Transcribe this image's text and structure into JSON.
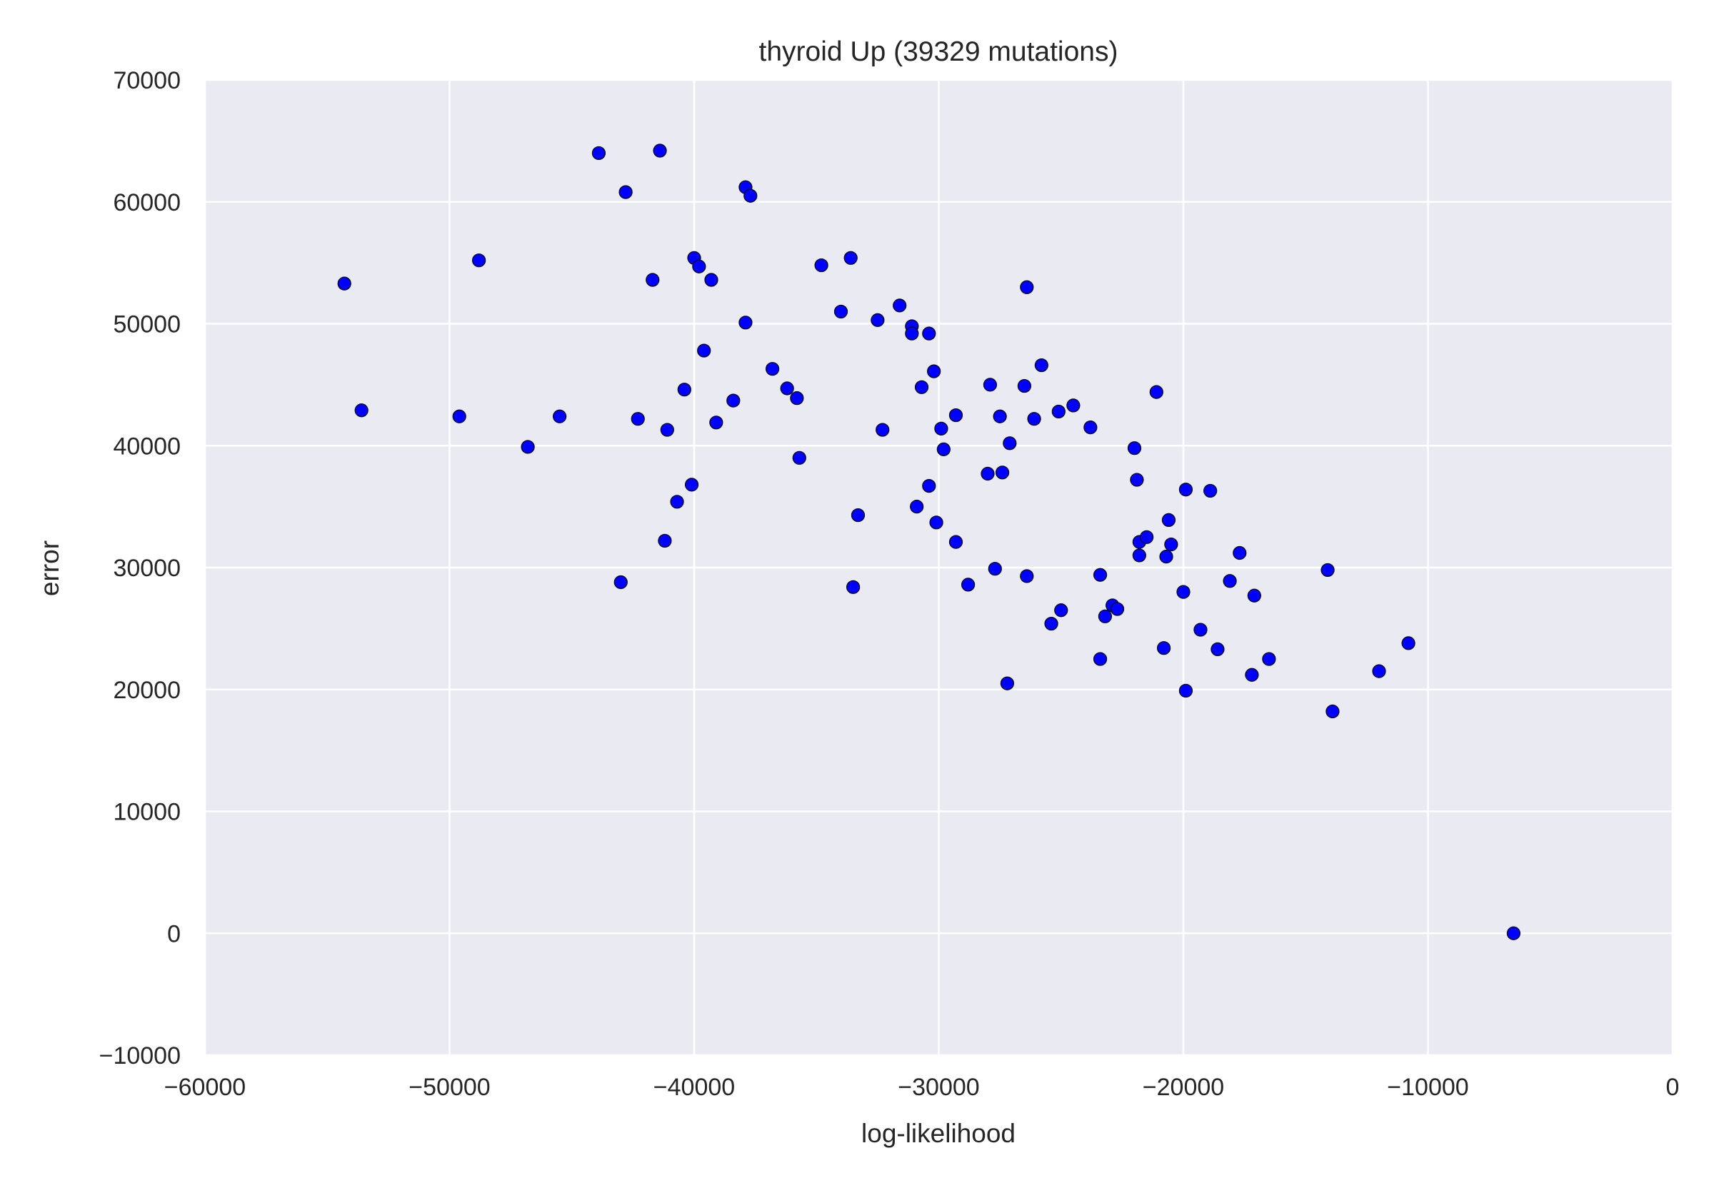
{
  "chart_data": {
    "type": "scatter",
    "title": "thyroid Up (39329 mutations)",
    "xlabel": "log-likelihood",
    "ylabel": "error",
    "xlim": [
      -60000,
      0
    ],
    "ylim": [
      -10000,
      70000
    ],
    "xticks": [
      -60000,
      -50000,
      -40000,
      -30000,
      -20000,
      -10000,
      0
    ],
    "yticks": [
      -10000,
      0,
      10000,
      20000,
      30000,
      40000,
      50000,
      60000,
      70000
    ],
    "grid": true,
    "legend": "none",
    "colors": {
      "background": "#eaeaf2",
      "grid": "#ffffff",
      "point_fill": "#0000ff",
      "point_edge": "#000000",
      "text": "#262626"
    },
    "points": [
      [
        -54300,
        53300
      ],
      [
        -53600,
        42900
      ],
      [
        -49600,
        42400
      ],
      [
        -48800,
        55200
      ],
      [
        -46800,
        39900
      ],
      [
        -45500,
        42400
      ],
      [
        -43900,
        64000
      ],
      [
        -43000,
        28800
      ],
      [
        -42800,
        60800
      ],
      [
        -42300,
        42200
      ],
      [
        -41700,
        53600
      ],
      [
        -41400,
        64200
      ],
      [
        -41200,
        32200
      ],
      [
        -41100,
        41300
      ],
      [
        -40700,
        35400
      ],
      [
        -40400,
        44600
      ],
      [
        -40100,
        36800
      ],
      [
        -40000,
        55400
      ],
      [
        -39800,
        54700
      ],
      [
        -39600,
        47800
      ],
      [
        -39300,
        53600
      ],
      [
        -39100,
        41900
      ],
      [
        -38400,
        43700
      ],
      [
        -37900,
        61200
      ],
      [
        -37700,
        60500
      ],
      [
        -37900,
        50100
      ],
      [
        -36800,
        46300
      ],
      [
        -36200,
        44700
      ],
      [
        -35800,
        43900
      ],
      [
        -35700,
        39000
      ],
      [
        -34800,
        54800
      ],
      [
        -34000,
        51000
      ],
      [
        -33600,
        55400
      ],
      [
        -33500,
        28400
      ],
      [
        -33300,
        34300
      ],
      [
        -32500,
        50300
      ],
      [
        -32300,
        41300
      ],
      [
        -31600,
        51500
      ],
      [
        -31100,
        49800
      ],
      [
        -31100,
        49200
      ],
      [
        -30900,
        35000
      ],
      [
        -30700,
        44800
      ],
      [
        -30400,
        49200
      ],
      [
        -30400,
        36700
      ],
      [
        -30200,
        46100
      ],
      [
        -30100,
        33700
      ],
      [
        -29900,
        41400
      ],
      [
        -29800,
        39700
      ],
      [
        -29300,
        32100
      ],
      [
        -29300,
        42500
      ],
      [
        -28800,
        28600
      ],
      [
        -28000,
        37700
      ],
      [
        -27900,
        45000
      ],
      [
        -27700,
        29900
      ],
      [
        -27500,
        42400
      ],
      [
        -27400,
        37800
      ],
      [
        -27200,
        20500
      ],
      [
        -27100,
        40200
      ],
      [
        -26500,
        44900
      ],
      [
        -26400,
        53000
      ],
      [
        -26400,
        29300
      ],
      [
        -26100,
        42200
      ],
      [
        -25800,
        46600
      ],
      [
        -25400,
        25400
      ],
      [
        -25100,
        42800
      ],
      [
        -25000,
        26500
      ],
      [
        -24500,
        43300
      ],
      [
        -23800,
        41500
      ],
      [
        -23400,
        29400
      ],
      [
        -23400,
        22500
      ],
      [
        -23200,
        26000
      ],
      [
        -22900,
        26900
      ],
      [
        -22700,
        26600
      ],
      [
        -22000,
        39800
      ],
      [
        -21900,
        37200
      ],
      [
        -21800,
        31000
      ],
      [
        -21800,
        32100
      ],
      [
        -21500,
        32500
      ],
      [
        -21100,
        44400
      ],
      [
        -20800,
        23400
      ],
      [
        -20700,
        30900
      ],
      [
        -20600,
        33900
      ],
      [
        -20500,
        31900
      ],
      [
        -20000,
        28000
      ],
      [
        -19900,
        19900
      ],
      [
        -19900,
        36400
      ],
      [
        -19300,
        24900
      ],
      [
        -18900,
        36300
      ],
      [
        -18600,
        23300
      ],
      [
        -18100,
        28900
      ],
      [
        -17700,
        31200
      ],
      [
        -17200,
        21200
      ],
      [
        -17100,
        27700
      ],
      [
        -16500,
        22500
      ],
      [
        -14100,
        29800
      ],
      [
        -13900,
        18200
      ],
      [
        -12000,
        21500
      ],
      [
        -10800,
        23800
      ],
      [
        -6500,
        0
      ]
    ]
  }
}
